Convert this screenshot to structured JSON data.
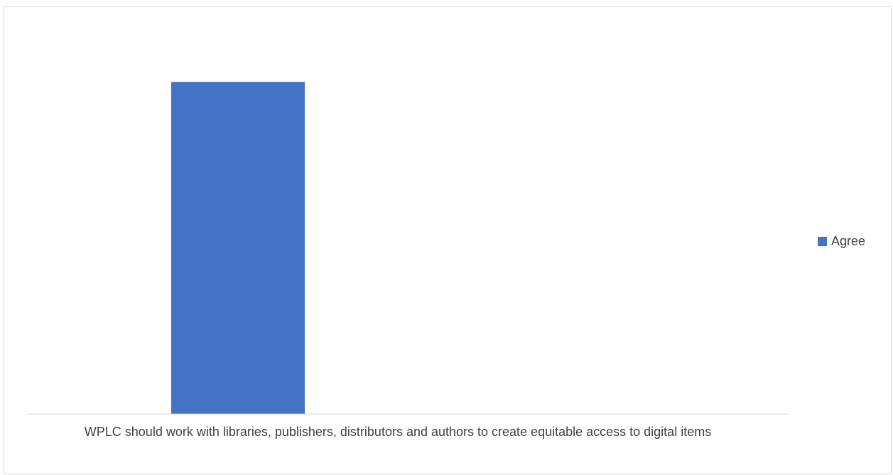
{
  "chart_data": {
    "type": "bar",
    "categories": [
      "WPLC should work with libraries, publishers, distributors and authors to create equitable access to digital items"
    ],
    "series": [
      {
        "name": "Agree",
        "values": [
          1
        ],
        "color": "#4472C4"
      }
    ],
    "ylim": [
      0,
      1.2
    ],
    "title": "",
    "xlabel": "",
    "ylabel": "",
    "grid": false,
    "legend_position": "right",
    "y_axis_labels_shown": false
  }
}
